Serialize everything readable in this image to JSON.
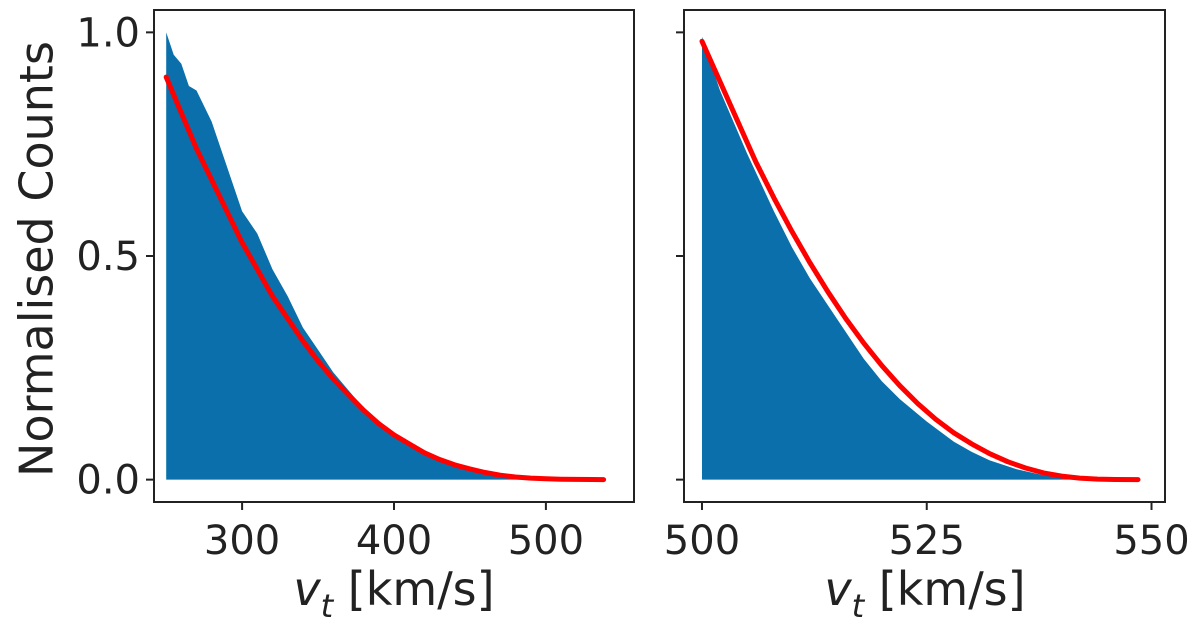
{
  "chart_data": [
    {
      "type": "area",
      "panel": "left",
      "title": "",
      "ylabel": "Normalised Counts",
      "xlabel_symbol": "v",
      "xlabel_subscript": "t",
      "xlabel_units": " [km/s]",
      "xlim": [
        242,
        558
      ],
      "ylim": [
        -0.05,
        1.05
      ],
      "xticks": [
        300,
        400,
        500
      ],
      "xtick_labels": [
        "300",
        "400",
        "500"
      ],
      "yticks": [
        0.0,
        0.5,
        1.0
      ],
      "ytick_labels": [
        "0.0",
        "0.5",
        "1.0"
      ],
      "series": [
        {
          "name": "Histogram",
          "kind": "filled-histogram",
          "color": "#0a6faa",
          "x": [
            250,
            252,
            255,
            260,
            265,
            270,
            280,
            290,
            300,
            310,
            320,
            330,
            340,
            350,
            360,
            370,
            380,
            390,
            400,
            410,
            420,
            430,
            440,
            450,
            460,
            470,
            480,
            490,
            500,
            510,
            520
          ],
          "values": [
            1.0,
            0.98,
            0.95,
            0.93,
            0.88,
            0.87,
            0.8,
            0.7,
            0.6,
            0.55,
            0.47,
            0.41,
            0.34,
            0.29,
            0.24,
            0.2,
            0.16,
            0.13,
            0.1,
            0.08,
            0.06,
            0.045,
            0.035,
            0.025,
            0.018,
            0.012,
            0.008,
            0.005,
            0.003,
            0.001,
            0.0
          ]
        },
        {
          "name": "Fit",
          "kind": "line",
          "color": "#ff0000",
          "x": [
            250,
            260,
            270,
            280,
            290,
            300,
            310,
            320,
            330,
            340,
            350,
            360,
            370,
            380,
            390,
            400,
            410,
            420,
            430,
            440,
            450,
            460,
            470,
            480,
            490,
            500,
            510,
            520,
            530,
            538
          ],
          "values": [
            0.9,
            0.82,
            0.74,
            0.67,
            0.6,
            0.53,
            0.47,
            0.41,
            0.36,
            0.31,
            0.265,
            0.225,
            0.19,
            0.155,
            0.125,
            0.1,
            0.08,
            0.06,
            0.045,
            0.033,
            0.024,
            0.016,
            0.01,
            0.006,
            0.0035,
            0.002,
            0.001,
            0.0005,
            0.0002,
            0.0
          ]
        }
      ]
    },
    {
      "type": "area",
      "panel": "right",
      "title": "",
      "ylabel": "",
      "xlabel_symbol": "v",
      "xlabel_subscript": "t",
      "xlabel_units": " [km/s]",
      "xlim": [
        498,
        551.5
      ],
      "ylim": [
        -0.05,
        1.05
      ],
      "xticks": [
        500,
        525,
        550
      ],
      "xtick_labels": [
        "500",
        "525",
        "550"
      ],
      "yticks": [
        0.0,
        0.5,
        1.0
      ],
      "ytick_labels": [
        "",
        "",
        ""
      ],
      "series": [
        {
          "name": "Histogram",
          "kind": "filled-histogram",
          "color": "#0a6faa",
          "x": [
            500,
            502,
            505,
            508,
            510,
            512,
            515,
            518,
            520,
            522,
            525,
            528,
            530,
            532,
            535,
            538,
            540,
            542,
            545,
            548
          ],
          "values": [
            0.99,
            0.87,
            0.73,
            0.6,
            0.52,
            0.45,
            0.36,
            0.27,
            0.22,
            0.18,
            0.13,
            0.085,
            0.062,
            0.043,
            0.023,
            0.01,
            0.004,
            0.001,
            0.0,
            0.0
          ]
        },
        {
          "name": "Fit",
          "kind": "line",
          "color": "#ff0000",
          "x": [
            500,
            502,
            504,
            506,
            508,
            510,
            512,
            514,
            516,
            518,
            520,
            522,
            524,
            526,
            528,
            530,
            532,
            534,
            536,
            538,
            540,
            542,
            544,
            546,
            548.5
          ],
          "values": [
            0.98,
            0.89,
            0.8,
            0.71,
            0.63,
            0.555,
            0.485,
            0.42,
            0.36,
            0.305,
            0.255,
            0.21,
            0.17,
            0.135,
            0.105,
            0.08,
            0.058,
            0.04,
            0.026,
            0.015,
            0.008,
            0.0035,
            0.0012,
            0.0003,
            0.0
          ]
        }
      ]
    }
  ]
}
